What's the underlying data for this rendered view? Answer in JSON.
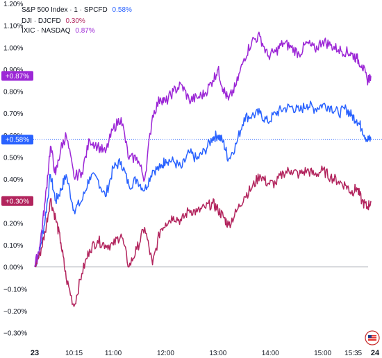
{
  "chart_data": {
    "type": "line",
    "y_unit": "%",
    "ylim": [
      -0.32,
      1.2
    ],
    "y_ticks": [
      "1.20%",
      "1.10%",
      "1.00%",
      "0.90%",
      "0.80%",
      "0.70%",
      "0.60%",
      "0.50%",
      "0.40%",
      "0.30%",
      "0.20%",
      "0.10%",
      "0.00%",
      "−0.10%",
      "−0.20%",
      "−0.30%"
    ],
    "x_ticks": [
      {
        "label": "23",
        "bold": true
      },
      {
        "label": "10:15",
        "bold": false
      },
      {
        "label": "11:00",
        "bold": false
      },
      {
        "label": "12:00",
        "bold": false
      },
      {
        "label": "13:00",
        "bold": false
      },
      {
        "label": "14:00",
        "bold": false
      },
      {
        "label": "15:00",
        "bold": false
      },
      {
        "label": "15:35",
        "bold": false
      },
      {
        "label": "24",
        "bold": true
      }
    ],
    "x_tick_hours": [
      9.5,
      10.25,
      11.0,
      12.0,
      13.0,
      14.0,
      15.0,
      15.583,
      16.0
    ],
    "grid": false,
    "legend_position": "top-left",
    "series": [
      {
        "name": "S&P 500 Index · 1 · SPCFD",
        "legend_value": "0.58%",
        "badge": "+0.58%",
        "color": "#2962ff",
        "x_hours": [
          9.5,
          9.6,
          9.7,
          9.8,
          9.9,
          10.0,
          10.1,
          10.25,
          10.4,
          10.55,
          10.7,
          10.85,
          11.0,
          11.15,
          11.3,
          11.45,
          11.6,
          11.75,
          11.9,
          12.0,
          12.15,
          12.3,
          12.45,
          12.6,
          12.75,
          12.9,
          13.0,
          13.1,
          13.2,
          13.35,
          13.5,
          13.65,
          13.8,
          13.95,
          14.1,
          14.25,
          14.4,
          14.55,
          14.7,
          14.85,
          15.0,
          15.15,
          15.3,
          15.45,
          15.55,
          15.65,
          15.75,
          15.85,
          15.92
        ],
        "values": [
          0.0,
          0.08,
          0.22,
          0.42,
          0.3,
          0.35,
          0.42,
          0.26,
          0.3,
          0.41,
          0.4,
          0.32,
          0.45,
          0.48,
          0.37,
          0.4,
          0.35,
          0.44,
          0.45,
          0.49,
          0.48,
          0.45,
          0.52,
          0.49,
          0.53,
          0.59,
          0.6,
          0.57,
          0.49,
          0.56,
          0.68,
          0.69,
          0.7,
          0.66,
          0.7,
          0.72,
          0.73,
          0.71,
          0.74,
          0.72,
          0.74,
          0.73,
          0.7,
          0.72,
          0.69,
          0.67,
          0.63,
          0.58,
          0.58
        ]
      },
      {
        "name": "DJI · DJCFD",
        "legend_value": "0.30%",
        "badge": "+0.30%",
        "color": "#b2245d",
        "x_hours": [
          9.5,
          9.6,
          9.7,
          9.8,
          9.9,
          10.0,
          10.1,
          10.25,
          10.4,
          10.55,
          10.7,
          10.85,
          11.0,
          11.15,
          11.3,
          11.45,
          11.6,
          11.75,
          11.9,
          12.0,
          12.15,
          12.3,
          12.45,
          12.6,
          12.75,
          12.9,
          13.0,
          13.1,
          13.2,
          13.35,
          13.5,
          13.65,
          13.8,
          13.95,
          14.1,
          14.25,
          14.4,
          14.55,
          14.7,
          14.85,
          15.0,
          15.15,
          15.3,
          15.45,
          15.55,
          15.65,
          15.75,
          15.85,
          15.92
        ],
        "values": [
          0.0,
          0.06,
          0.16,
          0.31,
          0.22,
          0.11,
          -0.05,
          -0.18,
          -0.03,
          0.08,
          0.12,
          0.1,
          0.1,
          0.15,
          0.0,
          0.08,
          0.18,
          0.01,
          0.17,
          0.2,
          0.23,
          0.21,
          0.26,
          0.25,
          0.27,
          0.29,
          0.26,
          0.23,
          0.19,
          0.25,
          0.32,
          0.36,
          0.42,
          0.38,
          0.38,
          0.43,
          0.44,
          0.42,
          0.44,
          0.42,
          0.44,
          0.41,
          0.39,
          0.37,
          0.34,
          0.36,
          0.3,
          0.27,
          0.3
        ]
      },
      {
        "name": "IXIC · NASDAQ",
        "legend_value": "0.87%",
        "badge": "+0.87%",
        "color": "#9c27d6",
        "x_hours": [
          9.5,
          9.6,
          9.7,
          9.8,
          9.9,
          10.0,
          10.1,
          10.25,
          10.4,
          10.55,
          10.7,
          10.85,
          11.0,
          11.15,
          11.3,
          11.45,
          11.6,
          11.75,
          11.9,
          12.0,
          12.15,
          12.3,
          12.45,
          12.6,
          12.75,
          12.9,
          13.0,
          13.1,
          13.2,
          13.35,
          13.5,
          13.65,
          13.8,
          13.95,
          14.1,
          14.25,
          14.4,
          14.55,
          14.7,
          14.85,
          15.0,
          15.15,
          15.3,
          15.45,
          15.55,
          15.65,
          15.75,
          15.85,
          15.92
        ],
        "values": [
          0.0,
          0.1,
          0.3,
          0.55,
          0.42,
          0.54,
          0.6,
          0.41,
          0.43,
          0.58,
          0.55,
          0.52,
          0.63,
          0.68,
          0.49,
          0.5,
          0.4,
          0.69,
          0.77,
          0.75,
          0.8,
          0.83,
          0.76,
          0.77,
          0.79,
          0.85,
          0.9,
          0.81,
          0.76,
          0.83,
          0.95,
          1.03,
          1.05,
          0.96,
          0.98,
          1.02,
          1.0,
          0.97,
          1.02,
          0.99,
          1.03,
          1.01,
          0.99,
          0.98,
          0.97,
          0.95,
          0.92,
          0.85,
          0.87
        ]
      }
    ]
  }
}
